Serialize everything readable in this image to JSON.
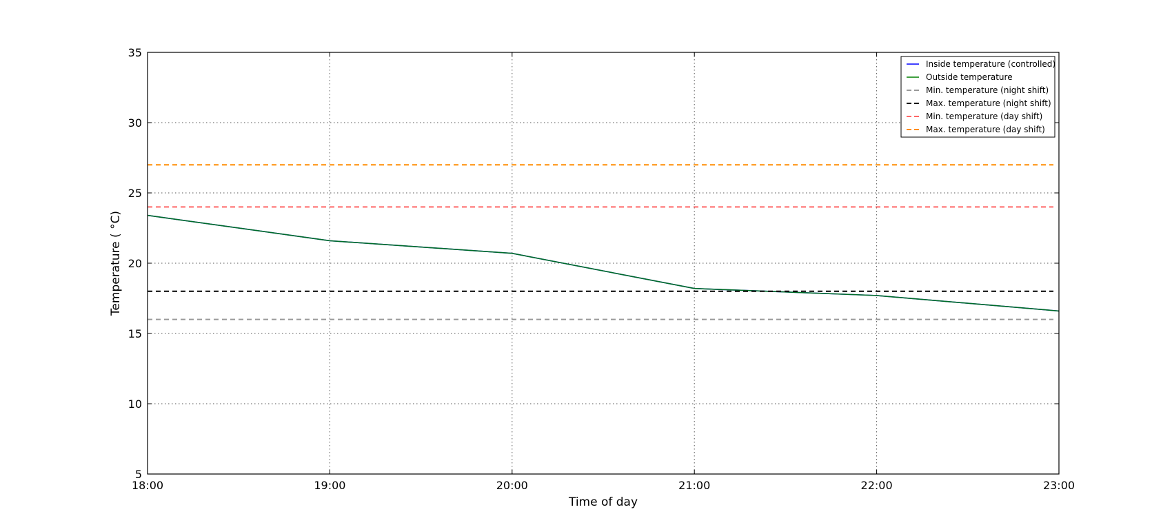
{
  "chart_data": {
    "type": "line",
    "title": "",
    "xlabel": "Time of day",
    "ylabel": "Temperature ( °C)",
    "x_ticks": [
      "18:00",
      "19:00",
      "20:00",
      "21:00",
      "22:00",
      "23:00"
    ],
    "xlim": [
      18,
      23
    ],
    "ylim": [
      5,
      35
    ],
    "y_ticks": [
      "5",
      "10",
      "15",
      "20",
      "25",
      "30",
      "35"
    ],
    "grid": true,
    "legend_position": "top-right",
    "series": [
      {
        "name": "Inside temperature (controlled)",
        "color": "#0000ff",
        "style": "solid",
        "x": [
          18,
          19,
          20,
          21,
          22,
          23
        ],
        "values": [
          23.4,
          21.6,
          20.7,
          18.2,
          17.7,
          16.6
        ]
      },
      {
        "name": "Outside temperature",
        "color": "#008000",
        "style": "solid",
        "x": [
          18,
          19,
          20,
          21,
          22,
          23
        ],
        "values": [
          23.4,
          21.6,
          20.7,
          18.2,
          17.7,
          16.6
        ]
      },
      {
        "name": "Min. temperature (night shift)",
        "color": "#999999",
        "style": "dashed",
        "x": [
          18,
          23
        ],
        "values": [
          16,
          16
        ]
      },
      {
        "name": "Max. temperature (night shift)",
        "color": "#000000",
        "style": "dashed",
        "x": [
          18,
          23
        ],
        "values": [
          18,
          18
        ]
      },
      {
        "name": "Min. temperature (day shift)",
        "color": "#ff6666",
        "style": "dashed",
        "x": [
          18,
          23
        ],
        "values": [
          24,
          24
        ]
      },
      {
        "name": "Max. temperature (day shift)",
        "color": "#ff8c00",
        "style": "dashed",
        "x": [
          18,
          23
        ],
        "values": [
          27,
          27
        ]
      }
    ]
  }
}
